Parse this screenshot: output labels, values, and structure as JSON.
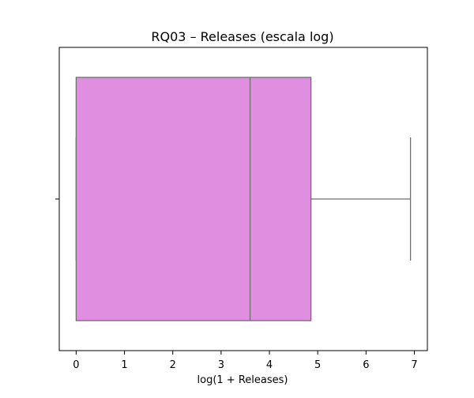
{
  "chart_data": {
    "type": "box",
    "title": "RQ03 – Releases (escala log)",
    "xlabel": "log(1 + Releases)",
    "ylabel": "",
    "orientation": "horizontal",
    "xlim": [
      -0.35,
      7.27
    ],
    "x_ticks": [
      0,
      1,
      2,
      3,
      4,
      5,
      6,
      7
    ],
    "x_tick_labels": [
      "0",
      "1",
      "2",
      "3",
      "4",
      "5",
      "6",
      "7"
    ],
    "grid": false,
    "legend": "none",
    "box": {
      "whisker_low": 0,
      "q1": 0,
      "median": 3.6,
      "q3": 4.86,
      "whisker_high": 6.92
    },
    "colors": {
      "box_fill": "#e08ee0",
      "box_line": "#6e6e6e",
      "axes": "#000000"
    }
  }
}
